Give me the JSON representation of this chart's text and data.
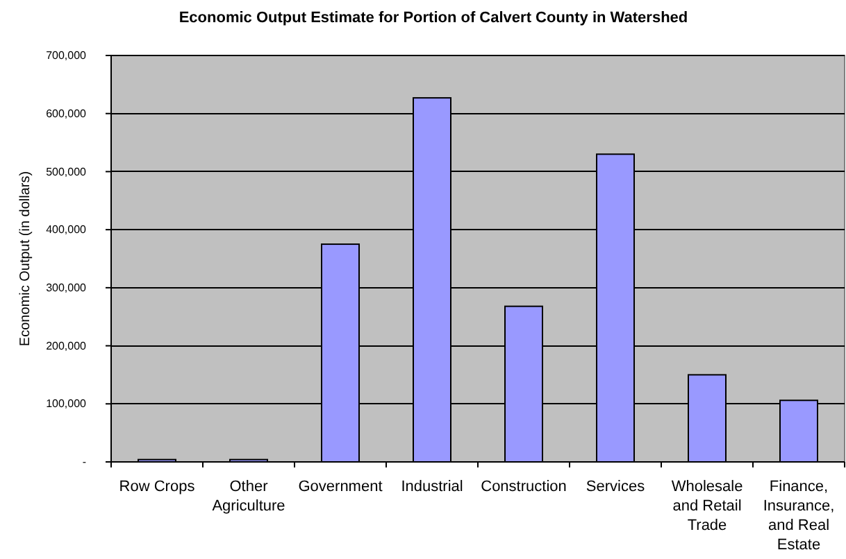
{
  "chart_data": {
    "type": "bar",
    "title": "Economic Output Estimate for Portion of Calvert County in Watershed",
    "ylabel": "Economic Output (in dollars)",
    "categories": [
      "Row Crops",
      "Other Agriculture",
      "Government",
      "Industrial",
      "Construction",
      "Services",
      "Wholesale and Retail Trade",
      "Finance, Insurance, and Real Estate"
    ],
    "values": [
      4000,
      4000,
      375000,
      627000,
      268000,
      530000,
      150000,
      106000
    ],
    "color": "#9999ff",
    "ylim": [
      0,
      700000
    ],
    "yticks": [
      {
        "value": 0,
        "label": "-"
      },
      {
        "value": 100000,
        "label": "100,000"
      },
      {
        "value": 200000,
        "label": "200,000"
      },
      {
        "value": 300000,
        "label": "300,000"
      },
      {
        "value": 400000,
        "label": "400,000"
      },
      {
        "value": 500000,
        "label": "500,000"
      },
      {
        "value": 600000,
        "label": "600,000"
      },
      {
        "value": 700000,
        "label": "700,000"
      }
    ],
    "grid": "y"
  }
}
